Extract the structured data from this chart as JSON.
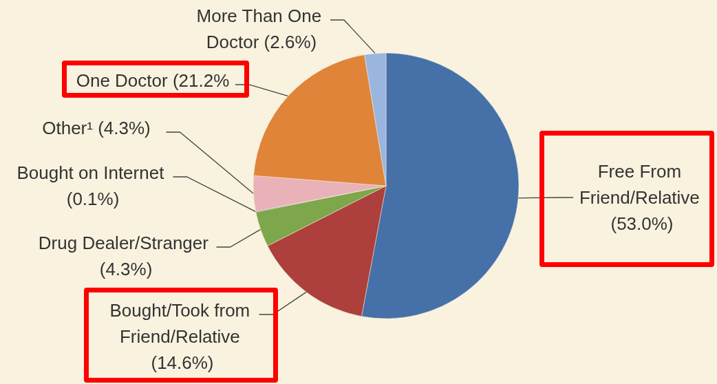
{
  "chart_data": {
    "type": "pie",
    "categories": [
      "Free From Friend/Relative",
      "Bought/Took from Friend/Relative",
      "Drug Dealer/Stranger",
      "Bought on Internet",
      "Other¹",
      "One Doctor",
      "More Than One Doctor"
    ],
    "values": [
      53.0,
      14.6,
      4.3,
      0.1,
      4.3,
      21.2,
      2.6
    ],
    "value_labels": [
      "(53.0%)",
      "(14.6%)",
      "(4.3%)",
      "(0.1%)",
      "(4.3%)",
      "(21.2%",
      "(2.6%)"
    ],
    "colors": [
      "#4570a8",
      "#ad3f3c",
      "#7ea64a",
      "#7d62a0",
      "#e8b2b8",
      "#e0843a",
      "#9ab6de"
    ],
    "legend": false
  }
}
